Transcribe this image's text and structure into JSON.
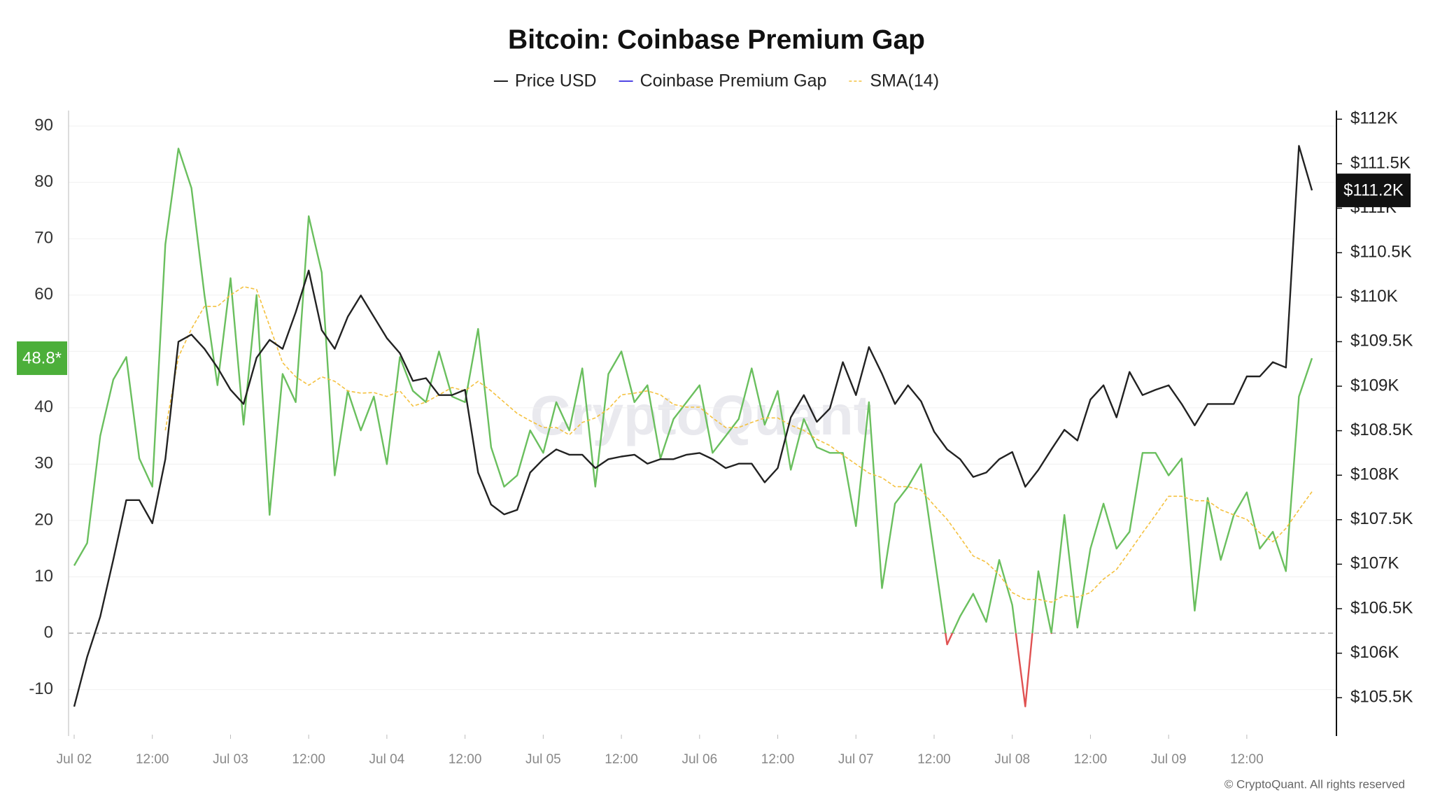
{
  "chart_data": {
    "type": "line",
    "title": "Bitcoin: Coinbase Premium Gap",
    "categories": [
      "Jul 02 00:00",
      "Jul 02 02:00",
      "Jul 02 04:00",
      "Jul 02 06:00",
      "Jul 02 08:00",
      "Jul 02 10:00",
      "Jul 02 12:00",
      "Jul 02 14:00",
      "Jul 02 16:00",
      "Jul 02 18:00",
      "Jul 02 20:00",
      "Jul 02 22:00",
      "Jul 03 00:00",
      "Jul 03 02:00",
      "Jul 03 04:00",
      "Jul 03 06:00",
      "Jul 03 08:00",
      "Jul 03 10:00",
      "Jul 03 12:00",
      "Jul 03 14:00",
      "Jul 03 16:00",
      "Jul 03 18:00",
      "Jul 03 20:00",
      "Jul 03 22:00",
      "Jul 04 00:00",
      "Jul 04 02:00",
      "Jul 04 04:00",
      "Jul 04 06:00",
      "Jul 04 08:00",
      "Jul 04 10:00",
      "Jul 04 12:00",
      "Jul 04 14:00",
      "Jul 04 16:00",
      "Jul 04 18:00",
      "Jul 04 20:00",
      "Jul 04 22:00",
      "Jul 05 00:00",
      "Jul 05 02:00",
      "Jul 05 04:00",
      "Jul 05 06:00",
      "Jul 05 08:00",
      "Jul 05 10:00",
      "Jul 05 12:00",
      "Jul 05 14:00",
      "Jul 05 16:00",
      "Jul 05 18:00",
      "Jul 05 20:00",
      "Jul 05 22:00",
      "Jul 06 00:00",
      "Jul 06 02:00",
      "Jul 06 04:00",
      "Jul 06 06:00",
      "Jul 06 08:00",
      "Jul 06 10:00",
      "Jul 06 12:00",
      "Jul 06 14:00",
      "Jul 06 16:00",
      "Jul 06 18:00",
      "Jul 06 20:00",
      "Jul 06 22:00",
      "Jul 07 00:00",
      "Jul 07 02:00",
      "Jul 07 04:00",
      "Jul 07 06:00",
      "Jul 07 08:00",
      "Jul 07 10:00",
      "Jul 07 12:00",
      "Jul 07 14:00",
      "Jul 07 16:00",
      "Jul 07 18:00",
      "Jul 07 20:00",
      "Jul 07 22:00",
      "Jul 08 00:00",
      "Jul 08 02:00",
      "Jul 08 04:00",
      "Jul 08 06:00",
      "Jul 08 08:00",
      "Jul 08 10:00",
      "Jul 08 12:00",
      "Jul 08 14:00",
      "Jul 08 16:00",
      "Jul 08 18:00",
      "Jul 08 20:00",
      "Jul 08 22:00",
      "Jul 09 00:00",
      "Jul 09 02:00",
      "Jul 09 04:00",
      "Jul 09 06:00",
      "Jul 09 08:00",
      "Jul 09 10:00",
      "Jul 09 12:00",
      "Jul 09 14:00",
      "Jul 09 16:00",
      "Jul 09 18:00",
      "Jul 09 20:00",
      "Jul 09 22:00"
    ],
    "xticks": [
      {
        "value": "Jul 02 00:00",
        "label": "Jul 02"
      },
      {
        "value": "Jul 02 12:00",
        "label": "12:00"
      },
      {
        "value": "Jul 03 00:00",
        "label": "Jul 03"
      },
      {
        "value": "Jul 03 12:00",
        "label": "12:00"
      },
      {
        "value": "Jul 04 00:00",
        "label": "Jul 04"
      },
      {
        "value": "Jul 04 12:00",
        "label": "12:00"
      },
      {
        "value": "Jul 05 00:00",
        "label": "Jul 05"
      },
      {
        "value": "Jul 05 12:00",
        "label": "12:00"
      },
      {
        "value": "Jul 06 00:00",
        "label": "Jul 06"
      },
      {
        "value": "Jul 06 12:00",
        "label": "12:00"
      },
      {
        "value": "Jul 07 00:00",
        "label": "Jul 07"
      },
      {
        "value": "Jul 07 12:00",
        "label": "12:00"
      },
      {
        "value": "Jul 08 00:00",
        "label": "Jul 08"
      },
      {
        "value": "Jul 08 12:00",
        "label": "12:00"
      },
      {
        "value": "Jul 09 00:00",
        "label": "Jul 09"
      },
      {
        "value": "Jul 09 12:00",
        "label": "12:00"
      }
    ],
    "ylim": [
      -18,
      92
    ],
    "yticks": [
      -10,
      0,
      10,
      20,
      30,
      40,
      50,
      60,
      70,
      80,
      90
    ],
    "y2lim": [
      105085,
      112050
    ],
    "y2ticks": [
      {
        "value": 105500,
        "label": "$105.5K"
      },
      {
        "value": 106000,
        "label": "$106K"
      },
      {
        "value": 106500,
        "label": "$106.5K"
      },
      {
        "value": 107000,
        "label": "$107K"
      },
      {
        "value": 107500,
        "label": "$107.5K"
      },
      {
        "value": 108000,
        "label": "$108K"
      },
      {
        "value": 108500,
        "label": "$108.5K"
      },
      {
        "value": 109000,
        "label": "$109K"
      },
      {
        "value": 109500,
        "label": "$109.5K"
      },
      {
        "value": 110000,
        "label": "$110K"
      },
      {
        "value": 110500,
        "label": "$110.5K"
      },
      {
        "value": 111000,
        "label": "$111K"
      },
      {
        "value": 111500,
        "label": "$111.5K"
      },
      {
        "value": 112000,
        "label": "$112K"
      }
    ],
    "grid": true,
    "zero_line": true,
    "series": [
      {
        "name": "Price USD",
        "color": "#222222",
        "axis": "y2",
        "values": [
          105400,
          105960,
          106410,
          107050,
          107720,
          107720,
          107460,
          108180,
          109500,
          109580,
          109420,
          109210,
          108960,
          108800,
          109320,
          109520,
          109420,
          109830,
          110300,
          109630,
          109420,
          109780,
          110020,
          109780,
          109540,
          109370,
          109060,
          109090,
          108900,
          108900,
          108960,
          108030,
          107670,
          107560,
          107610,
          108030,
          108180,
          108290,
          108230,
          108230,
          108080,
          108180,
          108210,
          108230,
          108130,
          108180,
          108180,
          108230,
          108250,
          108180,
          108080,
          108130,
          108130,
          107920,
          108080,
          108650,
          108900,
          108600,
          108750,
          109270,
          108900,
          109440,
          109140,
          108800,
          109010,
          108830,
          108490,
          108290,
          108180,
          107980,
          108030,
          108180,
          108260,
          107870,
          108060,
          108290,
          108510,
          108390,
          108850,
          109010,
          108650,
          109160,
          108900,
          108960,
          109010,
          108800,
          108560,
          108800,
          108800,
          108800,
          109110,
          109110,
          109270,
          109210,
          111700,
          111200
        ]
      },
      {
        "name": "Coinbase Premium Gap",
        "color": "#5046e4",
        "line_color": "#6abf5e",
        "negative_color": "#e05252",
        "values": [
          12,
          16,
          35,
          45,
          49,
          31,
          26,
          69,
          86,
          79,
          60,
          44,
          63,
          37,
          60,
          21,
          46,
          41,
          74,
          64,
          28,
          43,
          36,
          42,
          30,
          49,
          43,
          41,
          50,
          42,
          41,
          54,
          33,
          26,
          28,
          36,
          32,
          41,
          36,
          47,
          26,
          46,
          50,
          41,
          44,
          31,
          38,
          41,
          44,
          32,
          35,
          38,
          47,
          37,
          43,
          29,
          38,
          33,
          32,
          32,
          19,
          41,
          8,
          23,
          26,
          30,
          14,
          -2,
          3,
          7,
          2,
          13,
          5,
          -13,
          11,
          0,
          21,
          1,
          15,
          23,
          15,
          18,
          32,
          32,
          28,
          31,
          4,
          24,
          13,
          21,
          25,
          15,
          18,
          11,
          42,
          48.8
        ]
      },
      {
        "name": "SMA(14)",
        "color": "#f4c13f",
        "dashed": true,
        "values": [
          null,
          null,
          null,
          null,
          null,
          null,
          null,
          36,
          49,
          54,
          58,
          58,
          60,
          61.5,
          61,
          54.5,
          48,
          45.5,
          44,
          45.5,
          44.7,
          43,
          42.6,
          42.7,
          42,
          43,
          40.3,
          41,
          42.3,
          43.6,
          43,
          44.7,
          43,
          41,
          39,
          37.7,
          36.5,
          36.5,
          35.2,
          37.4,
          38.2,
          39.8,
          42.3,
          42.6,
          43,
          42.3,
          40.6,
          40.1,
          40.1,
          38.2,
          36.5,
          36.5,
          37.4,
          38.2,
          38.2,
          36.9,
          36,
          34.4,
          33.3,
          31.6,
          30,
          28.4,
          27.6,
          26,
          26,
          25.4,
          22.7,
          20.2,
          17,
          13.7,
          12.6,
          10.4,
          7.2,
          6,
          6,
          5.5,
          6.7,
          6.4,
          7.2,
          9.6,
          11.3,
          14.5,
          17.8,
          21,
          24.3,
          24.3,
          23.5,
          23.5,
          21.9,
          21,
          20.2,
          17.8,
          16.2,
          18.6,
          21.9,
          25.1
        ]
      }
    ],
    "annotations": [
      {
        "value": 48.8,
        "label": "48.8*",
        "axis": "y",
        "color": "#4caf3a"
      },
      {
        "value": 111200,
        "label": "$111.2K",
        "axis": "y2",
        "color": "#111111"
      }
    ],
    "watermark": "CryptoQuant",
    "credit": "© CryptoQuant. All rights reserved"
  }
}
